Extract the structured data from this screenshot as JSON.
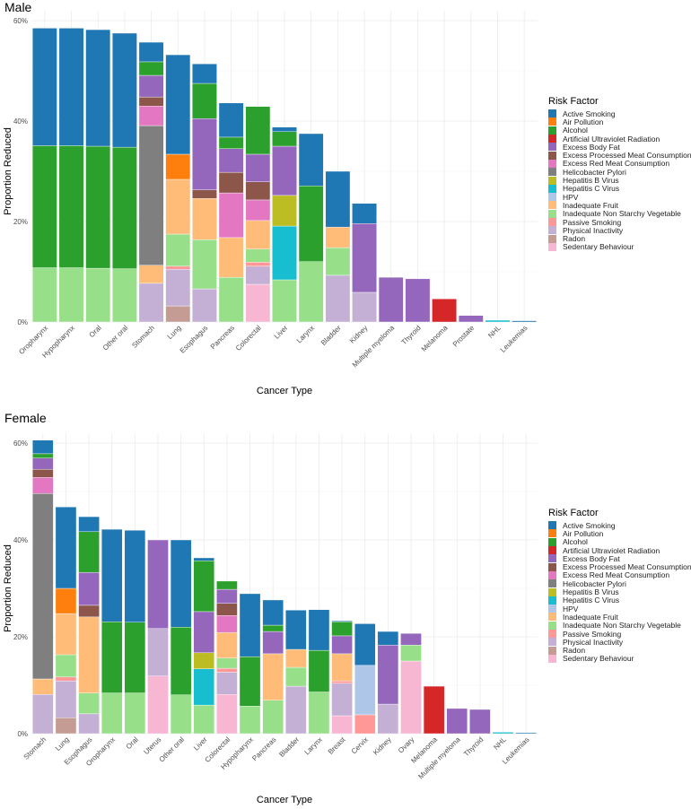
{
  "legend": {
    "title": "Risk Factor",
    "items": [
      {
        "key": "active_smoking",
        "label": "Active Smoking",
        "color": "#1f77b4"
      },
      {
        "key": "air_pollution",
        "label": "Air Pollution",
        "color": "#ff7f0e"
      },
      {
        "key": "alcohol",
        "label": "Alcohol",
        "color": "#2ca02c"
      },
      {
        "key": "uv",
        "label": "Artificial Ultraviolet Radiation",
        "color": "#d62728"
      },
      {
        "key": "body_fat",
        "label": "Excess Body Fat",
        "color": "#9467bd"
      },
      {
        "key": "processed_meat",
        "label": "Excess Processed Meat Consumption",
        "color": "#8c564b"
      },
      {
        "key": "red_meat",
        "label": "Excess Red Meat Consumption",
        "color": "#e377c2"
      },
      {
        "key": "h_pylori",
        "label": "Helicobacter Pylori",
        "color": "#7f7f7f"
      },
      {
        "key": "hep_b",
        "label": "Hepatitis B Virus",
        "color": "#bcbd22"
      },
      {
        "key": "hep_c",
        "label": "Hepatitis C Virus",
        "color": "#17becf"
      },
      {
        "key": "hpv",
        "label": "HPV",
        "color": "#aec7e8"
      },
      {
        "key": "fruit",
        "label": "Inadequate Fruit",
        "color": "#ffbb78"
      },
      {
        "key": "veg",
        "label": "Inadequate Non Starchy Vegetable",
        "color": "#98df8a"
      },
      {
        "key": "passive_smoking",
        "label": "Passive Smoking",
        "color": "#ff9896"
      },
      {
        "key": "inactivity",
        "label": "Physical Inactivity",
        "color": "#c5b0d5"
      },
      {
        "key": "radon",
        "label": "Radon",
        "color": "#c49c94"
      },
      {
        "key": "sedentary",
        "label": "Sedentary Behaviour",
        "color": "#f7b6d2"
      }
    ]
  },
  "chart_data": [
    {
      "type": "bar",
      "stacked": true,
      "title": "Male",
      "xlabel": "Cancer Type",
      "ylabel": "Proportion Reduced",
      "ylim": [
        0,
        62
      ],
      "yticks": [
        0,
        20,
        40,
        60
      ],
      "ytick_labels": [
        "0%",
        "20%",
        "40%",
        "60%"
      ],
      "grid": true,
      "legend_position": "right",
      "categories": [
        "Oropharynx",
        "Hypopharynx",
        "Oral",
        "Other oral",
        "Stomach",
        "Lung",
        "Esophagus",
        "Pancreas",
        "Colorectal",
        "Liver",
        "Larynx",
        "Bladder",
        "Kidney",
        "Multiple myeloma",
        "Thyroid",
        "Melanoma",
        "Prostate",
        "NHL",
        "Leukemias"
      ],
      "bars": [
        {
          "category": "Oropharynx",
          "segments": [
            [
              "veg",
              10.8
            ],
            [
              "alcohol",
              24.3
            ],
            [
              "active_smoking",
              23.4
            ]
          ]
        },
        {
          "category": "Hypopharynx",
          "segments": [
            [
              "veg",
              10.8
            ],
            [
              "alcohol",
              24.3
            ],
            [
              "active_smoking",
              23.4
            ]
          ]
        },
        {
          "category": "Oral",
          "segments": [
            [
              "veg",
              10.7
            ],
            [
              "alcohol",
              24.3
            ],
            [
              "active_smoking",
              23.2
            ]
          ]
        },
        {
          "category": "Other oral",
          "segments": [
            [
              "veg",
              10.6
            ],
            [
              "alcohol",
              24.2
            ],
            [
              "active_smoking",
              22.7
            ]
          ]
        },
        {
          "category": "Stomach",
          "segments": [
            [
              "inactivity",
              7.7
            ],
            [
              "fruit",
              3.6
            ],
            [
              "h_pylori",
              27.8
            ],
            [
              "red_meat",
              3.9
            ],
            [
              "processed_meat",
              1.8
            ],
            [
              "body_fat",
              4.3
            ],
            [
              "alcohol",
              2.7
            ],
            [
              "active_smoking",
              3.9
            ]
          ]
        },
        {
          "category": "Lung",
          "segments": [
            [
              "radon",
              3.2
            ],
            [
              "inactivity",
              7.3
            ],
            [
              "passive_smoking",
              0.6
            ],
            [
              "veg",
              6.4
            ],
            [
              "fruit",
              10.9
            ],
            [
              "air_pollution",
              5.0
            ],
            [
              "active_smoking",
              19.8
            ]
          ]
        },
        {
          "category": "Esophagus",
          "segments": [
            [
              "inactivity",
              6.6
            ],
            [
              "veg",
              9.8
            ],
            [
              "fruit",
              8.2
            ],
            [
              "processed_meat",
              1.7
            ],
            [
              "body_fat",
              14.2
            ],
            [
              "alcohol",
              7.0
            ],
            [
              "active_smoking",
              3.9
            ]
          ]
        },
        {
          "category": "Pancreas",
          "segments": [
            [
              "veg",
              8.9
            ],
            [
              "fruit",
              7.9
            ],
            [
              "red_meat",
              8.9
            ],
            [
              "processed_meat",
              4.1
            ],
            [
              "body_fat",
              4.7
            ],
            [
              "alcohol",
              2.3
            ],
            [
              "active_smoking",
              6.8
            ]
          ]
        },
        {
          "category": "Colorectal",
          "segments": [
            [
              "sedentary",
              7.5
            ],
            [
              "inactivity",
              3.6
            ],
            [
              "passive_smoking",
              0.8
            ],
            [
              "veg",
              2.6
            ],
            [
              "fruit",
              5.7
            ],
            [
              "red_meat",
              4.1
            ],
            [
              "processed_meat",
              3.6
            ],
            [
              "body_fat",
              5.5
            ],
            [
              "alcohol",
              9.5
            ]
          ]
        },
        {
          "category": "Liver",
          "segments": [
            [
              "veg",
              8.4
            ],
            [
              "hep_c",
              10.7
            ],
            [
              "hep_b",
              6.1
            ],
            [
              "body_fat",
              9.8
            ],
            [
              "alcohol",
              2.9
            ],
            [
              "active_smoking",
              0.9
            ]
          ]
        },
        {
          "category": "Larynx",
          "segments": [
            [
              "veg",
              12.0
            ],
            [
              "alcohol",
              15.1
            ],
            [
              "active_smoking",
              10.4
            ]
          ]
        },
        {
          "category": "Bladder",
          "segments": [
            [
              "inactivity",
              9.3
            ],
            [
              "veg",
              5.5
            ],
            [
              "fruit",
              4.1
            ],
            [
              "active_smoking",
              11.1
            ]
          ]
        },
        {
          "category": "Kidney",
          "segments": [
            [
              "inactivity",
              5.9
            ],
            [
              "body_fat",
              13.7
            ],
            [
              "active_smoking",
              4.0
            ]
          ]
        },
        {
          "category": "Multiple myeloma",
          "segments": [
            [
              "body_fat",
              8.9
            ]
          ]
        },
        {
          "category": "Thyroid",
          "segments": [
            [
              "body_fat",
              8.6
            ]
          ]
        },
        {
          "category": "Melanoma",
          "segments": [
            [
              "uv",
              4.6
            ]
          ]
        },
        {
          "category": "Prostate",
          "segments": [
            [
              "body_fat",
              1.3
            ]
          ]
        },
        {
          "category": "NHL",
          "segments": [
            [
              "hep_c",
              0.35
            ]
          ]
        },
        {
          "category": "Leukemias",
          "segments": [
            [
              "active_smoking",
              0.25
            ]
          ]
        }
      ]
    },
    {
      "type": "bar",
      "stacked": true,
      "title": "Female",
      "xlabel": "Cancer Type",
      "ylabel": "Proportion Reduced",
      "ylim": [
        0,
        62
      ],
      "yticks": [
        0,
        20,
        40,
        60
      ],
      "ytick_labels": [
        "0%",
        "20%",
        "40%",
        "60%"
      ],
      "grid": true,
      "legend_position": "right",
      "categories": [
        "Stomach",
        "Lung",
        "Esophagus",
        "Oropharynx",
        "Oral",
        "Uterus",
        "Other oral",
        "Liver",
        "Colorectal",
        "Hypopharynx",
        "Pancreas",
        "Bladder",
        "Larynx",
        "Breast",
        "Cervix",
        "Kidney",
        "Ovary",
        "Melanoma",
        "Multiple myeloma",
        "Thyroid",
        "NHL",
        "Leukemias"
      ],
      "bars": [
        {
          "category": "Stomach",
          "segments": [
            [
              "inactivity",
              8.1
            ],
            [
              "fruit",
              3.2
            ],
            [
              "h_pylori",
              38.3
            ],
            [
              "red_meat",
              3.3
            ],
            [
              "processed_meat",
              1.7
            ],
            [
              "body_fat",
              2.3
            ],
            [
              "alcohol",
              0.9
            ],
            [
              "active_smoking",
              2.8
            ]
          ]
        },
        {
          "category": "Lung",
          "segments": [
            [
              "radon",
              3.3
            ],
            [
              "inactivity",
              7.6
            ],
            [
              "passive_smoking",
              0.8
            ],
            [
              "veg",
              4.6
            ],
            [
              "fruit",
              8.5
            ],
            [
              "air_pollution",
              5.2
            ],
            [
              "active_smoking",
              16.8
            ]
          ]
        },
        {
          "category": "Esophagus",
          "segments": [
            [
              "inactivity",
              4.1
            ],
            [
              "veg",
              4.3
            ],
            [
              "fruit",
              15.7
            ],
            [
              "processed_meat",
              2.4
            ],
            [
              "body_fat",
              6.8
            ],
            [
              "alcohol",
              8.4
            ],
            [
              "active_smoking",
              3.1
            ]
          ]
        },
        {
          "category": "Oropharynx",
          "segments": [
            [
              "veg",
              8.4
            ],
            [
              "alcohol",
              14.7
            ],
            [
              "active_smoking",
              19.1
            ]
          ]
        },
        {
          "category": "Oral",
          "segments": [
            [
              "veg",
              8.4
            ],
            [
              "alcohol",
              14.6
            ],
            [
              "active_smoking",
              19.0
            ]
          ]
        },
        {
          "category": "Uterus",
          "segments": [
            [
              "sedentary",
              11.9
            ],
            [
              "inactivity",
              9.8
            ],
            [
              "body_fat",
              18.3
            ]
          ]
        },
        {
          "category": "Other oral",
          "segments": [
            [
              "veg",
              8.0
            ],
            [
              "alcohol",
              14.0
            ],
            [
              "active_smoking",
              18.0
            ]
          ]
        },
        {
          "category": "Liver",
          "segments": [
            [
              "veg",
              5.9
            ],
            [
              "hep_c",
              7.5
            ],
            [
              "hep_b",
              3.3
            ],
            [
              "body_fat",
              8.5
            ],
            [
              "alcohol",
              10.5
            ],
            [
              "active_smoking",
              0.6
            ]
          ]
        },
        {
          "category": "Colorectal",
          "segments": [
            [
              "sedentary",
              8.1
            ],
            [
              "inactivity",
              4.6
            ],
            [
              "passive_smoking",
              0.8
            ],
            [
              "veg",
              2.1
            ],
            [
              "fruit",
              5.3
            ],
            [
              "red_meat",
              3.5
            ],
            [
              "processed_meat",
              2.5
            ],
            [
              "body_fat",
              2.9
            ],
            [
              "alcohol",
              1.7
            ]
          ]
        },
        {
          "category": "Hypopharynx",
          "segments": [
            [
              "veg",
              5.7
            ],
            [
              "alcohol",
              10.2
            ],
            [
              "active_smoking",
              13.0
            ]
          ]
        },
        {
          "category": "Pancreas",
          "segments": [
            [
              "veg",
              6.9
            ],
            [
              "fruit",
              9.6
            ],
            [
              "body_fat",
              4.6
            ],
            [
              "alcohol",
              1.3
            ],
            [
              "active_smoking",
              5.2
            ]
          ]
        },
        {
          "category": "Bladder",
          "segments": [
            [
              "inactivity",
              9.8
            ],
            [
              "veg",
              3.9
            ],
            [
              "fruit",
              3.7
            ],
            [
              "active_smoking",
              8.1
            ]
          ]
        },
        {
          "category": "Larynx",
          "segments": [
            [
              "veg",
              8.6
            ],
            [
              "alcohol",
              8.6
            ],
            [
              "active_smoking",
              8.4
            ]
          ]
        },
        {
          "category": "Breast",
          "segments": [
            [
              "sedentary",
              3.7
            ],
            [
              "inactivity",
              6.7
            ],
            [
              "passive_smoking",
              0.5
            ],
            [
              "fruit",
              5.6
            ],
            [
              "body_fat",
              3.7
            ],
            [
              "alcohol",
              2.9
            ],
            [
              "active_smoking",
              0.2
            ]
          ]
        },
        {
          "category": "Cervix",
          "segments": [
            [
              "passive_smoking",
              3.9
            ],
            [
              "hpv",
              10.2
            ],
            [
              "active_smoking",
              8.6
            ]
          ]
        },
        {
          "category": "Kidney",
          "segments": [
            [
              "inactivity",
              6.1
            ],
            [
              "body_fat",
              12.2
            ],
            [
              "active_smoking",
              2.8
            ]
          ]
        },
        {
          "category": "Ovary",
          "segments": [
            [
              "sedentary",
              15.0
            ],
            [
              "veg",
              3.3
            ],
            [
              "body_fat",
              2.4
            ]
          ]
        },
        {
          "category": "Melanoma",
          "segments": [
            [
              "uv",
              9.8
            ]
          ]
        },
        {
          "category": "Multiple myeloma",
          "segments": [
            [
              "body_fat",
              5.2
            ]
          ]
        },
        {
          "category": "Thyroid",
          "segments": [
            [
              "body_fat",
              5.0
            ]
          ]
        },
        {
          "category": "NHL",
          "segments": [
            [
              "hep_c",
              0.3
            ]
          ]
        },
        {
          "category": "Leukemias",
          "segments": [
            [
              "active_smoking",
              0.2
            ]
          ]
        }
      ]
    }
  ]
}
